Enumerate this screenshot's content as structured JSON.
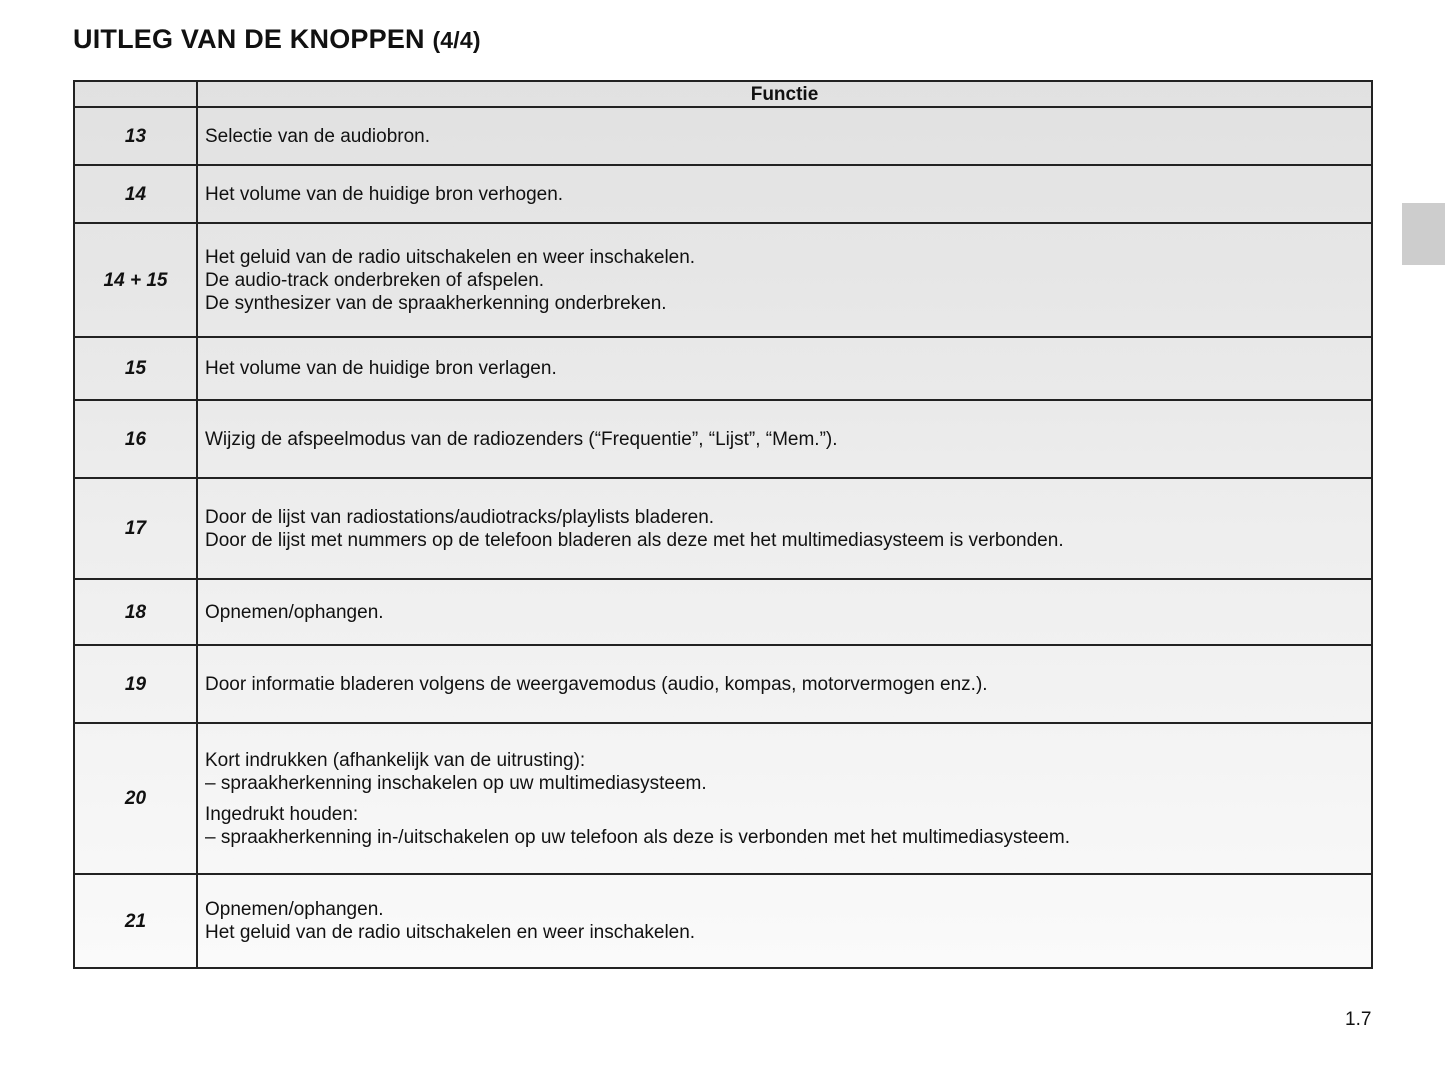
{
  "title": {
    "main": "UITLEG VAN DE KNOPPEN",
    "sub": "(4/4)"
  },
  "table": {
    "headers": [
      "",
      "Functie"
    ],
    "rows": [
      {
        "num": "13",
        "lines": [
          "Selectie van de audiobron."
        ]
      },
      {
        "num": "14",
        "lines": [
          "Het volume van de huidige bron verhogen."
        ]
      },
      {
        "num": "14 + 15",
        "lines": [
          "Het geluid van de radio uitschakelen en weer inschakelen.",
          "De audio-track onderbreken of afspelen.",
          "De synthesizer van de spraakherkenning onderbreken."
        ]
      },
      {
        "num": "15",
        "lines": [
          "Het volume van de huidige bron verlagen."
        ]
      },
      {
        "num": "16",
        "lines": [
          "Wijzig de afspeelmodus van de radiozenders (“Frequentie”, “Lijst”, “Mem.”)."
        ]
      },
      {
        "num": "17",
        "lines": [
          "Door de lijst van radiostations/audiotracks/playlists bladeren.",
          "Door de lijst met nummers op de telefoon bladeren als deze met het multimediasysteem is verbonden."
        ]
      },
      {
        "num": "18",
        "lines": [
          "Opnemen/ophangen."
        ]
      },
      {
        "num": "19",
        "lines": [
          "Door informatie bladeren volgens de weergavemodus (audio, kompas, motorvermogen enz.)."
        ]
      },
      {
        "num": "20",
        "lines": [
          "Kort indrukken (afhankelijk van de uitrusting):",
          "–   spraakherkenning inschakelen op uw multimediasysteem.",
          "Ingedrukt houden:",
          "–   spraakherkenning in-/uitschakelen op uw telefoon als deze is verbonden met het multimediasysteem."
        ]
      },
      {
        "num": "21",
        "lines": [
          "Opnemen/ophangen.",
          "Het geluid van de radio uitschakelen en weer inschakelen."
        ]
      }
    ]
  },
  "page_number": "1.7"
}
